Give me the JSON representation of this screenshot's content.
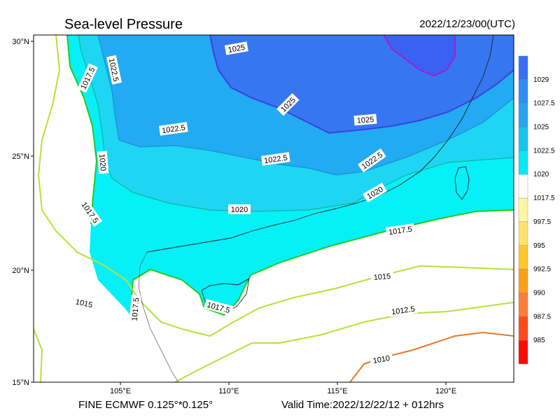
{
  "header": {
    "title": "Sea-level Pressure",
    "valid_utc": "2022/12/23/00(UTC)"
  },
  "footer": {
    "model": "FINE ECMWF 0.125°*0.125°",
    "valid_time": "Valid Time:2022/12/22/12 + 012hrs"
  },
  "axes": {
    "lat_ticks": [
      "30°N",
      "25°N",
      "20°N",
      "15°N"
    ],
    "lon_ticks": [
      "105°E",
      "110°E",
      "115°E",
      "120°E"
    ]
  },
  "isobars": {
    "labels": [
      "1025",
      "1022.5",
      "1017.5",
      "1025",
      "1022.5",
      "1025",
      "1020",
      "1022.5",
      "1022.5",
      "1017.5",
      "1020",
      "1020",
      "1017.5",
      "1015",
      "1017.5",
      "1017.5",
      "1015",
      "1012.5",
      "1010"
    ]
  },
  "colorbar": {
    "ticks": [
      "1029",
      "1027.5",
      "1025",
      "1022.5",
      "1020",
      "1017.5",
      "997.5",
      "995",
      "992.5",
      "990",
      "987.5",
      "985"
    ],
    "colors": [
      "#3a6ef5",
      "#2f8cf5",
      "#25a5f2",
      "#17c4f0",
      "#06e8f4",
      "#ffffff",
      "#fff6a0",
      "#ffe36a",
      "#ffc72a",
      "#ffa114",
      "#ff7b3c",
      "#ff4a1c",
      "#ff0a00"
    ]
  },
  "fills": {
    "band_1017": "#05f0f7",
    "band_1020": "#1ed6f2",
    "band_1022": "#22aaf2",
    "band_1025": "#3676f0",
    "land_line": "#000000",
    "contour_green": "#22cc22",
    "contour_light": "#b5e23a",
    "contour_orange": "#e67a28",
    "contour_blue": "#3c40e0",
    "contour_purple": "#a020c8"
  }
}
